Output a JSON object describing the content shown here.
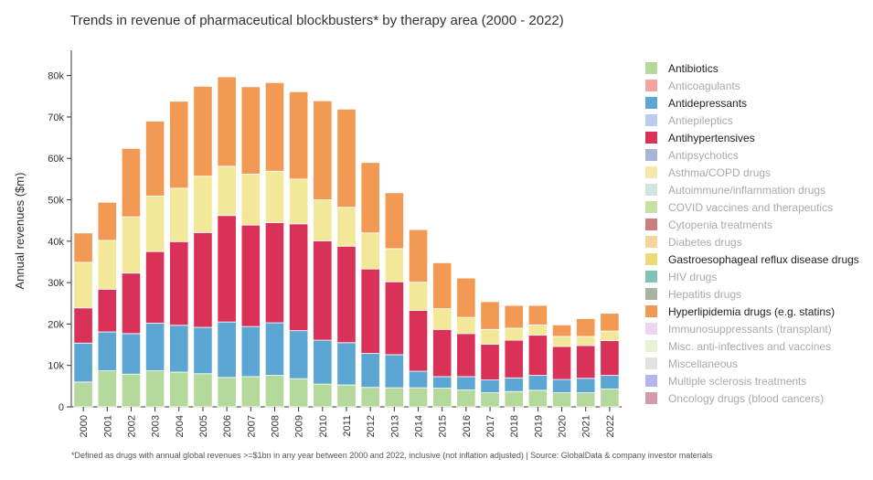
{
  "chart_data": {
    "type": "bar",
    "stacked": true,
    "title": "Trends in revenue of pharmaceutical blockbusters* by therapy area (2000 - 2022)",
    "ylabel": "Annual revenues ($m)",
    "xlabel": "",
    "ylim": [
      0,
      85000
    ],
    "yticks": [
      0,
      10000,
      20000,
      30000,
      40000,
      50000,
      60000,
      70000,
      80000
    ],
    "ytick_labels": [
      "0",
      "10k",
      "20k",
      "30k",
      "40k",
      "50k",
      "60k",
      "70k",
      "80k"
    ],
    "categories": [
      "2000",
      "2001",
      "2002",
      "2003",
      "2004",
      "2005",
      "2006",
      "2007",
      "2008",
      "2009",
      "2010",
      "2011",
      "2012",
      "2013",
      "2014",
      "2015",
      "2016",
      "2017",
      "2018",
      "2019",
      "2020",
      "2021",
      "2022"
    ],
    "series": [
      {
        "name": "Antibiotics",
        "color": "#b4d99b",
        "values": [
          6000,
          8700,
          7900,
          8700,
          8400,
          8000,
          7100,
          7300,
          7600,
          6800,
          5500,
          5300,
          4700,
          4600,
          4600,
          4500,
          4100,
          3400,
          3700,
          4000,
          3400,
          3400,
          4300
        ]
      },
      {
        "name": "Antidepressants",
        "color": "#5ba6d2",
        "values": [
          9400,
          9400,
          9800,
          11500,
          11300,
          11200,
          13400,
          12100,
          12700,
          11600,
          10600,
          10200,
          8200,
          8000,
          4000,
          2800,
          3200,
          3100,
          3300,
          3600,
          3200,
          3500,
          3300
        ]
      },
      {
        "name": "Antihypertensives",
        "color": "#d93158",
        "values": [
          8500,
          10300,
          14600,
          17300,
          20200,
          22900,
          25700,
          24500,
          24200,
          25800,
          24000,
          23300,
          20400,
          17600,
          14700,
          11400,
          10400,
          8600,
          9100,
          9700,
          8000,
          7900,
          8400
        ]
      },
      {
        "name": "Asthma/COPD drugs",
        "color": "#f3e79a",
        "values": [
          11000,
          11800,
          13600,
          13400,
          12900,
          13600,
          11900,
          12300,
          12400,
          10800,
          9900,
          9400,
          8700,
          8000,
          6800,
          5000,
          3900,
          3600,
          2900,
          2500,
          2400,
          2200,
          2300
        ]
      },
      {
        "name": "Hyperlipidemia drugs (e.g. statins)",
        "color": "#f29a54",
        "values": [
          7100,
          9200,
          16500,
          18100,
          21000,
          21700,
          21600,
          21100,
          21400,
          21100,
          23900,
          23700,
          17000,
          13500,
          12700,
          11100,
          9500,
          6700,
          5500,
          4700,
          2800,
          4300,
          4300
        ]
      }
    ],
    "legend": {
      "position": "right",
      "entries": [
        {
          "label": "Antibiotics",
          "color": "#b4d99b",
          "active": true
        },
        {
          "label": "Anticoagulants",
          "color": "#f4a3a3",
          "active": false
        },
        {
          "label": "Antidepressants",
          "color": "#5ba6d2",
          "active": true
        },
        {
          "label": "Antiepileptics",
          "color": "#b9cdee",
          "active": false
        },
        {
          "label": "Antihypertensives",
          "color": "#d93158",
          "active": true
        },
        {
          "label": "Antipsychotics",
          "color": "#a9b5d2",
          "active": false
        },
        {
          "label": "Asthma/COPD drugs",
          "color": "#f3e9a8",
          "active": false
        },
        {
          "label": "Autoimmune/inflammation drugs",
          "color": "#cfe6df",
          "active": false
        },
        {
          "label": "COVID vaccines and therapeutics",
          "color": "#c7e0a4",
          "active": false
        },
        {
          "label": "Cytopenia treatments",
          "color": "#cd7f7f",
          "active": false
        },
        {
          "label": "Diabetes drugs",
          "color": "#f8d39a",
          "active": false
        },
        {
          "label": "Gastroesophageal reflux disease drugs",
          "color": "#ecd978",
          "active": true
        },
        {
          "label": "HIV drugs",
          "color": "#80c4b8",
          "active": false
        },
        {
          "label": "Hepatitis drugs",
          "color": "#a9b3a2",
          "active": false
        },
        {
          "label": "Hyperlipidemia drugs (e.g. statins)",
          "color": "#f29a54",
          "active": true
        },
        {
          "label": "Immunosuppressants (transplant)",
          "color": "#ecd7ec",
          "active": false
        },
        {
          "label": "Misc. anti-infectives and vaccines",
          "color": "#e6f3d6",
          "active": false
        },
        {
          "label": "Miscellaneous",
          "color": "#e2e2e2",
          "active": false
        },
        {
          "label": "Multiple sclerosis treatments",
          "color": "#b6b4ec",
          "active": false
        },
        {
          "label": "Oncology drugs (blood cancers)",
          "color": "#d49aa8",
          "active": false
        }
      ]
    },
    "grid": false
  },
  "footnote": "*Defined as drugs with annual global revenues >=$1bn in any year between 2000 and 2022, inclusive (not inflation adjusted) | Source: GlobalData & company investor materials"
}
